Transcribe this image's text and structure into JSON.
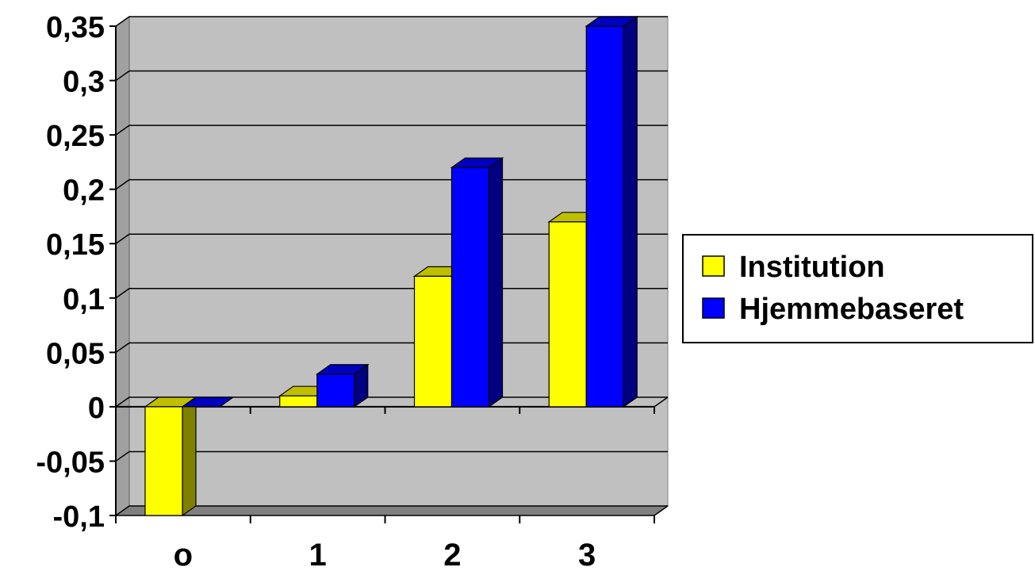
{
  "chart_data": {
    "type": "bar",
    "categories": [
      "o",
      "1",
      "2",
      "3"
    ],
    "series": [
      {
        "name": "Institution",
        "values": [
          -0.1,
          0.01,
          0.12,
          0.17
        ],
        "color": "#FFFF00"
      },
      {
        "name": "Hjemmebaseret",
        "values": [
          0.0,
          0.03,
          0.22,
          0.35
        ],
        "color": "#0000FF"
      }
    ],
    "ylim": [
      -0.1,
      0.35
    ],
    "yticks": [
      -0.1,
      -0.05,
      0,
      0.05,
      0.1,
      0.15,
      0.2,
      0.25,
      0.3,
      0.35
    ],
    "ytick_labels": [
      "-0,1",
      "-0,05",
      "0",
      "0,05",
      "0,1",
      "0,15",
      "0,2",
      "0,25",
      "0,3",
      "0,35"
    ],
    "grid": true,
    "plot_background": "#C0C0C0",
    "legend_position": "right",
    "title": "",
    "xlabel": "",
    "ylabel": ""
  }
}
